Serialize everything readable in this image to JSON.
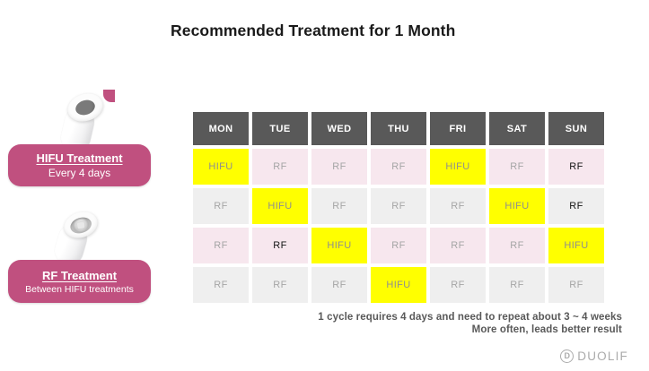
{
  "title": "Recommended Treatment for 1 Month",
  "colors": {
    "accent_magenta": "#c0507f",
    "header_gray": "#595959",
    "hifu_yellow": "#ffff00",
    "pink_cell": "#f7e7ee",
    "gray_cell": "#efefef"
  },
  "legend": {
    "hifu": {
      "title": "HIFU Treatment",
      "subtitle": "Every 4 days"
    },
    "rf": {
      "title": "RF Treatment",
      "subtitle": "Between HIFU treatments"
    }
  },
  "table": {
    "headers": [
      "MON",
      "TUE",
      "WED",
      "THU",
      "FRI",
      "SAT",
      "SUN"
    ],
    "rows": [
      {
        "theme": "pink",
        "cells": [
          {
            "label": "HIFU",
            "type": "hifu"
          },
          {
            "label": "RF",
            "type": "rf"
          },
          {
            "label": "RF",
            "type": "rf"
          },
          {
            "label": "RF",
            "type": "rf"
          },
          {
            "label": "HIFU",
            "type": "hifu"
          },
          {
            "label": "RF",
            "type": "rf"
          },
          {
            "label": "RF",
            "type": "rf-dark"
          }
        ]
      },
      {
        "theme": "gray",
        "cells": [
          {
            "label": "RF",
            "type": "rf"
          },
          {
            "label": "HIFU",
            "type": "hifu"
          },
          {
            "label": "RF",
            "type": "rf"
          },
          {
            "label": "RF",
            "type": "rf"
          },
          {
            "label": "RF",
            "type": "rf"
          },
          {
            "label": "HIFU",
            "type": "hifu"
          },
          {
            "label": "RF",
            "type": "rf-dark"
          }
        ]
      },
      {
        "theme": "pink",
        "cells": [
          {
            "label": "RF",
            "type": "rf"
          },
          {
            "label": "RF",
            "type": "rf-dark"
          },
          {
            "label": "HIFU",
            "type": "hifu"
          },
          {
            "label": "RF",
            "type": "rf"
          },
          {
            "label": "RF",
            "type": "rf"
          },
          {
            "label": "RF",
            "type": "rf"
          },
          {
            "label": "HIFU",
            "type": "hifu"
          }
        ]
      },
      {
        "theme": "gray",
        "cells": [
          {
            "label": "RF",
            "type": "rf"
          },
          {
            "label": "RF",
            "type": "rf"
          },
          {
            "label": "RF",
            "type": "rf"
          },
          {
            "label": "HIFU",
            "type": "hifu"
          },
          {
            "label": "RF",
            "type": "rf"
          },
          {
            "label": "RF",
            "type": "rf"
          },
          {
            "label": "RF",
            "type": "rf"
          }
        ]
      }
    ]
  },
  "footnote": {
    "line1": "1 cycle requires 4 days and need to repeat about 3 ~ 4 weeks",
    "line2": "More often, leads better result"
  },
  "logo": {
    "text": "DUOLIF",
    "icon_letter": "D"
  }
}
